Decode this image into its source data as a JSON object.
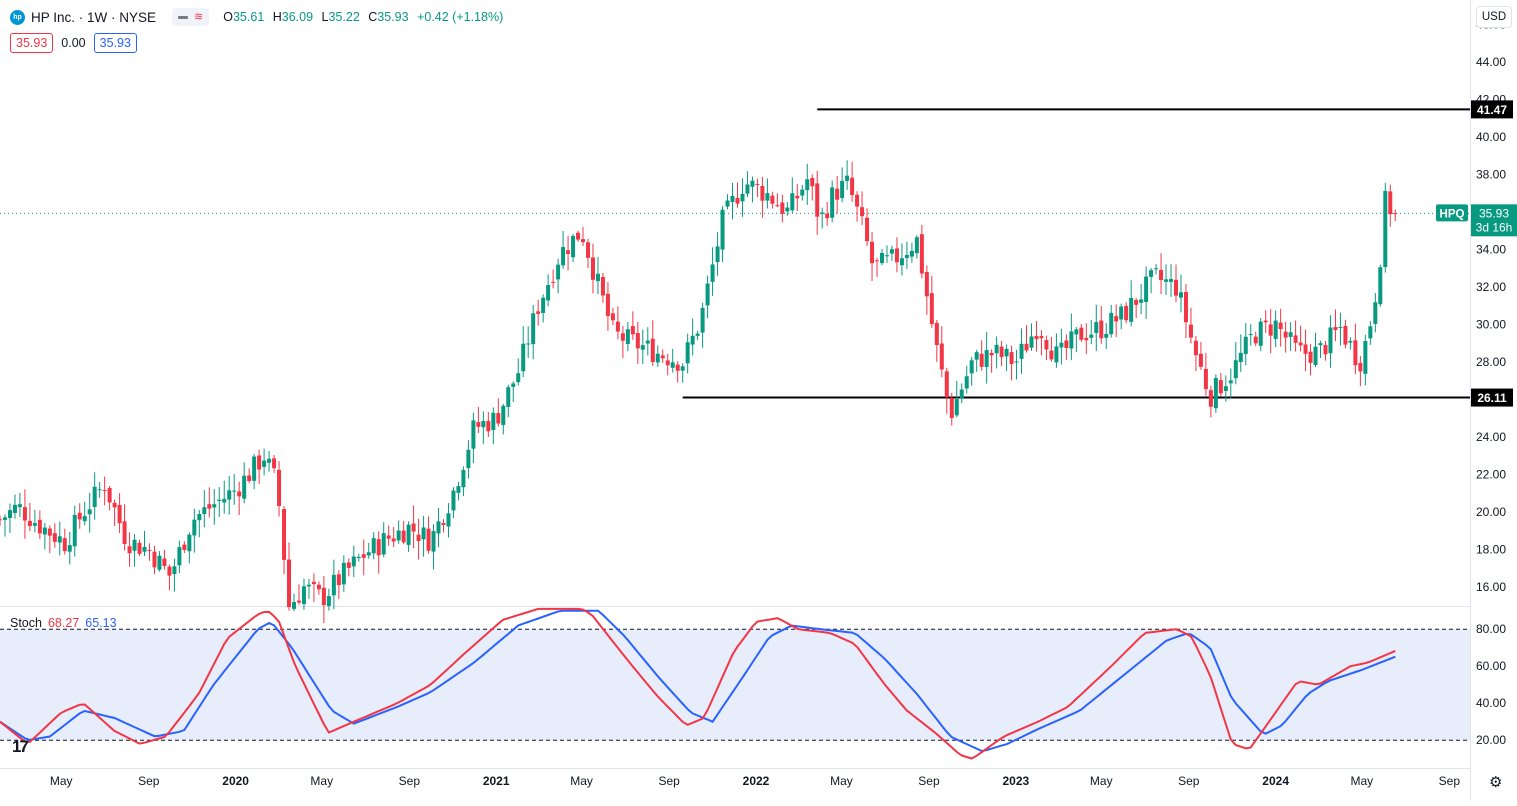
{
  "header": {
    "logo_text": "hp",
    "title": "HP Inc. · 1W · NYSE",
    "ohlc": [
      {
        "key": "O",
        "value": "35.61"
      },
      {
        "key": "H",
        "value": "36.09"
      },
      {
        "key": "L",
        "value": "35.22"
      },
      {
        "key": "C",
        "value": "35.93"
      }
    ],
    "change": "+0.42 (+1.18%)",
    "box_red": "35.93",
    "box_plain": "0.00",
    "box_blue": "35.93",
    "currency": "USD"
  },
  "stoch_header": {
    "name": "Stoch",
    "k_value": "68.27",
    "d_value": "65.13"
  },
  "colors": {
    "up": "#089981",
    "down": "#f23645",
    "stoch_k": "#f23645",
    "stoch_d": "#2962ff",
    "band_fill": "#e8edfc",
    "price_tag": "#089981"
  },
  "icons": {
    "brand": "tradingview-logo-icon",
    "settings": "gear-icon"
  },
  "chart_data": {
    "type": "candlestick",
    "symbol": "HPQ",
    "interval": "1W",
    "y_axis_ticks": [
      "16.00",
      "18.00",
      "20.00",
      "22.00",
      "24.00",
      "26.00",
      "28.00",
      "30.00",
      "32.00",
      "34.00",
      "36.00",
      "38.00",
      "40.00",
      "42.00",
      "44.00",
      "46.00"
    ],
    "ylim": [
      15.0,
      47.3
    ],
    "x_axis_ticks": [
      "May",
      "Sep",
      "2020",
      "May",
      "Sep",
      "2021",
      "May",
      "Sep",
      "2022",
      "May",
      "Sep",
      "2023",
      "May",
      "Sep",
      "2024",
      "May",
      "Sep"
    ],
    "x_tick_dates": [
      "2019-05",
      "2019-09",
      "2020-01",
      "2020-05",
      "2020-09",
      "2021-01",
      "2021-05",
      "2021-09",
      "2022-01",
      "2022-05",
      "2022-09",
      "2023-01",
      "2023-05",
      "2023-09",
      "2024-01",
      "2024-05",
      "2024-09"
    ],
    "date_range": [
      "2019-02-04",
      "2024-09-30"
    ],
    "last_bar_date": "2024-06-17",
    "anchors": [
      [
        "2019-02-04",
        19.6
      ],
      [
        "2019-03-01",
        20.3
      ],
      [
        "2019-04-01",
        19.3
      ],
      [
        "2019-05-06",
        18.4
      ],
      [
        "2019-06-01",
        20.0
      ],
      [
        "2019-07-01",
        21.5
      ],
      [
        "2019-08-01",
        18.5
      ],
      [
        "2019-09-01",
        18.0
      ],
      [
        "2019-10-01",
        16.6
      ],
      [
        "2019-11-01",
        19.6
      ],
      [
        "2019-12-01",
        20.4
      ],
      [
        "2020-01-01",
        21.2
      ],
      [
        "2020-02-10",
        23.0
      ],
      [
        "2020-02-28",
        21.5
      ],
      [
        "2020-03-16",
        15.0
      ],
      [
        "2020-04-06",
        16.0
      ],
      [
        "2020-05-01",
        15.4
      ],
      [
        "2020-06-01",
        16.7
      ],
      [
        "2020-07-01",
        17.8
      ],
      [
        "2020-08-01",
        18.6
      ],
      [
        "2020-09-01",
        19.2
      ],
      [
        "2020-10-01",
        18.5
      ],
      [
        "2020-11-01",
        21.0
      ],
      [
        "2020-12-01",
        24.5
      ],
      [
        "2021-01-01",
        25.0
      ],
      [
        "2021-02-01",
        27.5
      ],
      [
        "2021-03-01",
        31.0
      ],
      [
        "2021-04-01",
        33.8
      ],
      [
        "2021-05-01",
        35.0
      ],
      [
        "2021-05-25",
        32.0
      ],
      [
        "2021-06-15",
        29.5
      ],
      [
        "2021-07-15",
        29.0
      ],
      [
        "2021-08-15",
        28.5
      ],
      [
        "2021-09-20",
        28.0
      ],
      [
        "2021-10-15",
        30.2
      ],
      [
        "2021-11-15",
        35.5
      ],
      [
        "2021-12-15",
        37.6
      ],
      [
        "2022-01-15",
        37.0
      ],
      [
        "2022-02-15",
        36.0
      ],
      [
        "2022-03-15",
        37.8
      ],
      [
        "2022-04-01",
        35.5
      ],
      [
        "2022-04-20",
        37.0
      ],
      [
        "2022-05-10",
        37.5
      ],
      [
        "2022-06-01",
        35.0
      ],
      [
        "2022-06-15",
        33.0
      ],
      [
        "2022-07-15",
        33.5
      ],
      [
        "2022-08-15",
        34.5
      ],
      [
        "2022-09-10",
        29.0
      ],
      [
        "2022-10-01",
        25.2
      ],
      [
        "2022-11-01",
        28.0
      ],
      [
        "2022-12-01",
        28.5
      ],
      [
        "2023-01-01",
        28.0
      ],
      [
        "2023-02-01",
        30.0
      ],
      [
        "2023-03-01",
        28.2
      ],
      [
        "2023-04-01",
        29.5
      ],
      [
        "2023-05-01",
        29.8
      ],
      [
        "2023-06-01",
        30.5
      ],
      [
        "2023-07-15",
        32.5
      ],
      [
        "2023-08-15",
        32.0
      ],
      [
        "2023-09-10",
        28.5
      ],
      [
        "2023-10-01",
        26.2
      ],
      [
        "2023-11-01",
        27.5
      ],
      [
        "2023-12-01",
        29.5
      ],
      [
        "2024-01-01",
        30.0
      ],
      [
        "2024-02-01",
        28.5
      ],
      [
        "2024-03-01",
        28.5
      ],
      [
        "2024-04-01",
        29.8
      ],
      [
        "2024-04-28",
        28.0
      ],
      [
        "2024-05-10",
        29.5
      ],
      [
        "2024-05-24",
        32.5
      ],
      [
        "2024-06-03",
        36.5
      ],
      [
        "2024-06-17",
        35.93
      ]
    ],
    "horizontal_levels": [
      {
        "value": 41.47,
        "label": "41.47",
        "from_date": "2022-03-28"
      },
      {
        "value": 26.11,
        "label": "26.11",
        "from_date": "2021-09-20"
      }
    ],
    "last_price": {
      "value": 35.93,
      "label": "35.93",
      "symbol_tag": "HPQ",
      "countdown": "3d 16h"
    },
    "indicator": {
      "name": "Stoch",
      "ylim": [
        5,
        92
      ],
      "y_axis_ticks": [
        "20.00",
        "40.00",
        "60.00",
        "80.00"
      ],
      "band": [
        20,
        80
      ],
      "k_anchors": [
        [
          "2019-02-04",
          30
        ],
        [
          "2019-03-15",
          18
        ],
        [
          "2019-05-01",
          35
        ],
        [
          "2019-06-01",
          40
        ],
        [
          "2019-07-15",
          25
        ],
        [
          "2019-08-20",
          18
        ],
        [
          "2019-09-25",
          22
        ],
        [
          "2019-11-10",
          45
        ],
        [
          "2019-12-20",
          75
        ],
        [
          "2020-02-01",
          88
        ],
        [
          "2020-02-15",
          90
        ],
        [
          "2020-03-01",
          85
        ],
        [
          "2020-03-25",
          60
        ],
        [
          "2020-05-10",
          24
        ],
        [
          "2020-06-15",
          30
        ],
        [
          "2020-08-15",
          40
        ],
        [
          "2020-10-01",
          50
        ],
        [
          "2020-11-15",
          66
        ],
        [
          "2021-01-10",
          85
        ],
        [
          "2021-03-01",
          91
        ],
        [
          "2021-05-01",
          91
        ],
        [
          "2021-05-15",
          88
        ],
        [
          "2021-07-01",
          65
        ],
        [
          "2021-08-15",
          44
        ],
        [
          "2021-09-25",
          28
        ],
        [
          "2021-10-20",
          32
        ],
        [
          "2021-12-01",
          68
        ],
        [
          "2022-01-01",
          84
        ],
        [
          "2022-02-01",
          86
        ],
        [
          "2022-03-01",
          80
        ],
        [
          "2022-04-15",
          78
        ],
        [
          "2022-05-20",
          72
        ],
        [
          "2022-07-01",
          50
        ],
        [
          "2022-08-01",
          36
        ],
        [
          "2022-09-10",
          24
        ],
        [
          "2022-10-15",
          12
        ],
        [
          "2022-11-01",
          10
        ],
        [
          "2022-12-15",
          22
        ],
        [
          "2023-02-01",
          30
        ],
        [
          "2023-03-15",
          38
        ],
        [
          "2023-05-15",
          60
        ],
        [
          "2023-07-01",
          78
        ],
        [
          "2023-08-15",
          80
        ],
        [
          "2023-09-05",
          76
        ],
        [
          "2023-10-01",
          55
        ],
        [
          "2023-11-01",
          18
        ],
        [
          "2023-11-25",
          15
        ],
        [
          "2024-01-10",
          40
        ],
        [
          "2024-02-01",
          52
        ],
        [
          "2024-03-01",
          50
        ],
        [
          "2024-04-15",
          60
        ],
        [
          "2024-05-10",
          62
        ],
        [
          "2024-06-17",
          68.27
        ]
      ],
      "d_anchors": [
        [
          "2019-02-04",
          30
        ],
        [
          "2019-03-15",
          20
        ],
        [
          "2019-04-15",
          22
        ],
        [
          "2019-06-01",
          36
        ],
        [
          "2019-07-15",
          32
        ],
        [
          "2019-09-10",
          22
        ],
        [
          "2019-10-20",
          25
        ],
        [
          "2019-12-01",
          50
        ],
        [
          "2020-02-01",
          80
        ],
        [
          "2020-02-20",
          84
        ],
        [
          "2020-03-20",
          70
        ],
        [
          "2020-05-15",
          36
        ],
        [
          "2020-06-15",
          29
        ],
        [
          "2020-08-15",
          38
        ],
        [
          "2020-10-01",
          46
        ],
        [
          "2020-12-01",
          62
        ],
        [
          "2021-02-01",
          82
        ],
        [
          "2021-04-01",
          90
        ],
        [
          "2021-05-25",
          90
        ],
        [
          "2021-07-01",
          76
        ],
        [
          "2021-08-15",
          55
        ],
        [
          "2021-10-01",
          35
        ],
        [
          "2021-11-01",
          30
        ],
        [
          "2021-12-15",
          55
        ],
        [
          "2022-01-20",
          76
        ],
        [
          "2022-02-20",
          82
        ],
        [
          "2022-04-01",
          80
        ],
        [
          "2022-05-20",
          78
        ],
        [
          "2022-07-01",
          64
        ],
        [
          "2022-08-15",
          45
        ],
        [
          "2022-10-01",
          22
        ],
        [
          "2022-11-15",
          14
        ],
        [
          "2022-12-20",
          18
        ],
        [
          "2023-02-01",
          26
        ],
        [
          "2023-04-01",
          36
        ],
        [
          "2023-06-01",
          55
        ],
        [
          "2023-08-01",
          74
        ],
        [
          "2023-09-01",
          78
        ],
        [
          "2023-10-01",
          70
        ],
        [
          "2023-11-01",
          42
        ],
        [
          "2023-12-15",
          23
        ],
        [
          "2024-01-10",
          28
        ],
        [
          "2024-02-15",
          45
        ],
        [
          "2024-03-15",
          52
        ],
        [
          "2024-05-01",
          58
        ],
        [
          "2024-06-17",
          65.13
        ]
      ]
    }
  }
}
